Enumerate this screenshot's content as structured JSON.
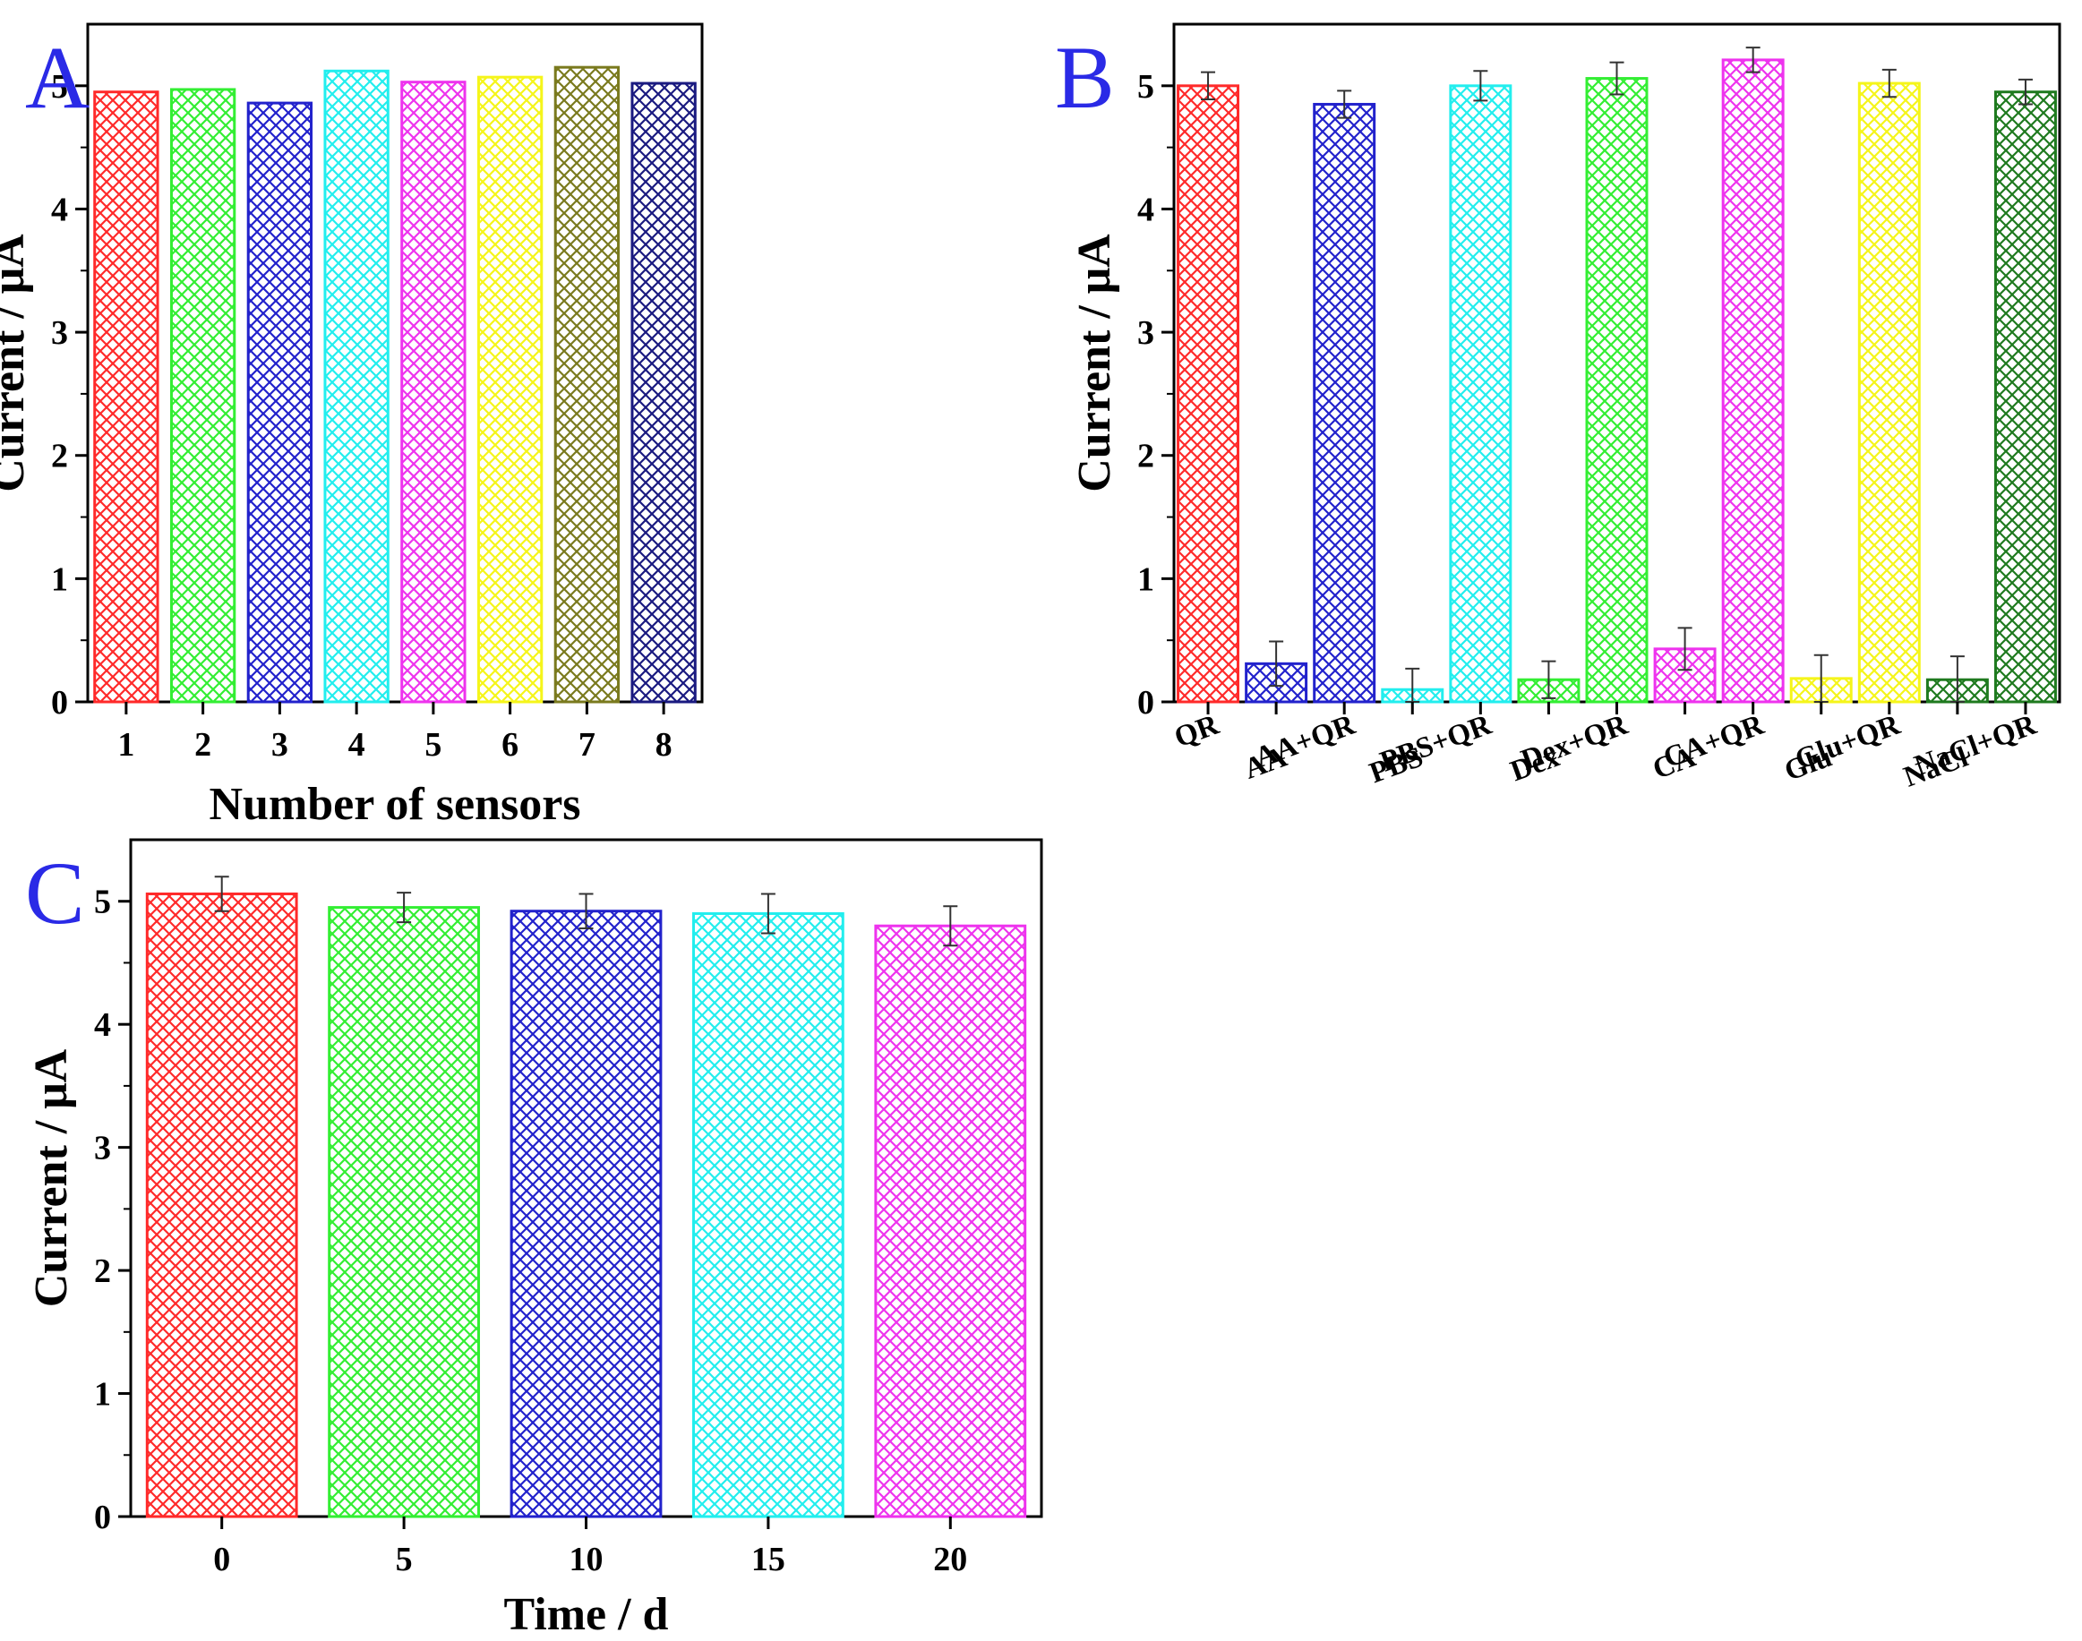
{
  "chart_data": [
    {
      "panel": "A",
      "type": "bar",
      "title": "",
      "xlabel": "Number of sensors",
      "ylabel": "Current / μA",
      "ylim": [
        0,
        5.5
      ],
      "yticks": [
        "0",
        "1",
        "2",
        "3",
        "4",
        "5"
      ],
      "categories": [
        "1",
        "2",
        "3",
        "4",
        "5",
        "6",
        "7",
        "8"
      ],
      "values": [
        4.95,
        4.97,
        4.86,
        5.12,
        5.03,
        5.07,
        5.15,
        5.02
      ],
      "errors": [],
      "colors": [
        "#ff2a2a",
        "#33ee33",
        "#2222cc",
        "#22eeee",
        "#ee33ee",
        "#f5f51a",
        "#7a7a1e",
        "#1a1a80"
      ]
    },
    {
      "panel": "B",
      "type": "bar",
      "title": "",
      "xlabel": "",
      "ylabel": "Current / μA",
      "ylim": [
        0,
        5.5
      ],
      "yticks": [
        "0",
        "1",
        "2",
        "3",
        "4",
        "5"
      ],
      "categories": [
        "QR",
        "AA",
        "AA+QR",
        "PBS",
        "PBS+QR",
        "Dex",
        "Dex+QR",
        "CA",
        "CA+QR",
        "Glu",
        "Glu+QR",
        "NaCl",
        "NaCl+QR"
      ],
      "values": [
        5.0,
        0.31,
        4.85,
        0.1,
        5.0,
        0.18,
        5.06,
        0.43,
        5.21,
        0.19,
        5.02,
        0.18,
        4.95
      ],
      "errors": [
        0.11,
        0.18,
        0.11,
        0.17,
        0.12,
        0.15,
        0.13,
        0.17,
        0.1,
        0.19,
        0.11,
        0.19,
        0.1
      ],
      "colors": [
        "#ff2a2a",
        "#2222cc",
        "#2222cc",
        "#22eeee",
        "#22eeee",
        "#33ee33",
        "#33ee33",
        "#ee33ee",
        "#ee33ee",
        "#f5f51a",
        "#f5f51a",
        "#1f7a1f",
        "#1f7a1f"
      ]
    },
    {
      "panel": "C",
      "type": "bar",
      "title": "",
      "xlabel": "Time / d",
      "ylabel": "Current / μA",
      "ylim": [
        0,
        5.5
      ],
      "yticks": [
        "0",
        "1",
        "2",
        "3",
        "4",
        "5"
      ],
      "categories": [
        "0",
        "5",
        "10",
        "15",
        "20"
      ],
      "values": [
        5.06,
        4.95,
        4.92,
        4.9,
        4.8
      ],
      "errors": [
        0.14,
        0.12,
        0.14,
        0.16,
        0.16
      ],
      "colors": [
        "#ff2a2a",
        "#33ee33",
        "#2222cc",
        "#22eeee",
        "#ee33ee"
      ]
    }
  ]
}
